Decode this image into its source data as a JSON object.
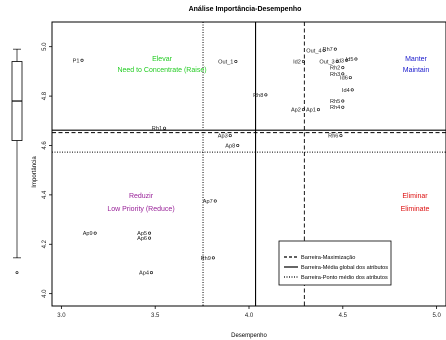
{
  "chart_data": {
    "type": "scatter",
    "title": "Análise Importância-Desempenho",
    "xlabel": "Desempenho",
    "ylabel": "Importância",
    "xlim": [
      2.95,
      5.05
    ],
    "ylim": [
      3.95,
      5.1
    ],
    "xticks": [
      "3.0",
      "3.5",
      "4.0",
      "4.5",
      "5.0"
    ],
    "xtick_values": [
      3.0,
      3.5,
      4.0,
      4.5,
      5.0
    ],
    "yticks": [
      "4.0",
      "4.2",
      "4.4",
      "4.6",
      "4.8",
      "5.0"
    ],
    "ytick_values": [
      4.0,
      4.2,
      4.4,
      4.6,
      4.8,
      5.0
    ],
    "lines": {
      "maximizacao_y": 4.652,
      "media_global_x": 4.035,
      "media_global_y": 4.662,
      "ponto_medio_x": 3.755,
      "ponto_medio_y": 4.573,
      "maximizacao_x": 4.295
    },
    "quadrants": [
      {
        "name": "Elevar",
        "subtitle": "Need to Concentrate (Raise)",
        "color": "#22cc22"
      },
      {
        "name": "Manter",
        "subtitle": "Maintain",
        "color": "#1a1acc"
      },
      {
        "name": "Reduzir",
        "subtitle": "Low Priority (Reduce)",
        "color": "#992299"
      },
      {
        "name": "Eliminar",
        "subtitle": "Eliminate",
        "color": "#dd1111"
      }
    ],
    "legend": {
      "position": "bottom-right",
      "entries": [
        {
          "label": "Barreira-Maximização",
          "style": "dashed"
        },
        {
          "label": "Barreira-Média global dos atributos",
          "style": "solid"
        },
        {
          "label": "Barreira-Ponto médio dos atributos",
          "style": "dotted"
        }
      ]
    },
    "points": [
      {
        "label": "P1",
        "x": 3.11,
        "y": 4.945
      },
      {
        "label": "Out_1",
        "x": 3.93,
        "y": 4.94
      },
      {
        "label": "Id2",
        "x": 4.29,
        "y": 4.94
      },
      {
        "label": "Out_4",
        "x": 4.4,
        "y": 4.985
      },
      {
        "label": "Rh7",
        "x": 4.46,
        "y": 4.99
      },
      {
        "label": "Out_3",
        "x": 4.47,
        "y": 4.94
      },
      {
        "label": "Id3",
        "x": 4.52,
        "y": 4.945
      },
      {
        "label": "Id5",
        "x": 4.57,
        "y": 4.95
      },
      {
        "label": "Rh2",
        "x": 4.5,
        "y": 4.915
      },
      {
        "label": "Rh3",
        "x": 4.5,
        "y": 4.89
      },
      {
        "label": "Id6",
        "x": 4.54,
        "y": 4.875
      },
      {
        "label": "Id4",
        "x": 4.55,
        "y": 4.825
      },
      {
        "label": "Rh8",
        "x": 4.09,
        "y": 4.805
      },
      {
        "label": "Rh5",
        "x": 4.5,
        "y": 4.78
      },
      {
        "label": "Rh4",
        "x": 4.5,
        "y": 4.755
      },
      {
        "label": "Ap2",
        "x": 4.29,
        "y": 4.745
      },
      {
        "label": "Ap1",
        "x": 4.37,
        "y": 4.745
      },
      {
        "label": "Rh1",
        "x": 3.55,
        "y": 4.67
      },
      {
        "label": "Ap3",
        "x": 3.9,
        "y": 4.64
      },
      {
        "label": "Rh6",
        "x": 4.49,
        "y": 4.64
      },
      {
        "label": "Ap8",
        "x": 3.94,
        "y": 4.6
      },
      {
        "label": "Ap7",
        "x": 3.82,
        "y": 4.375
      },
      {
        "label": "Ap9",
        "x": 3.18,
        "y": 4.245
      },
      {
        "label": "Ap5",
        "x": 3.47,
        "y": 4.245
      },
      {
        "label": "Ap6",
        "x": 3.47,
        "y": 4.225
      },
      {
        "label": "Rh9",
        "x": 3.81,
        "y": 4.145
      },
      {
        "label": "Ap4",
        "x": 3.48,
        "y": 4.085
      }
    ]
  }
}
